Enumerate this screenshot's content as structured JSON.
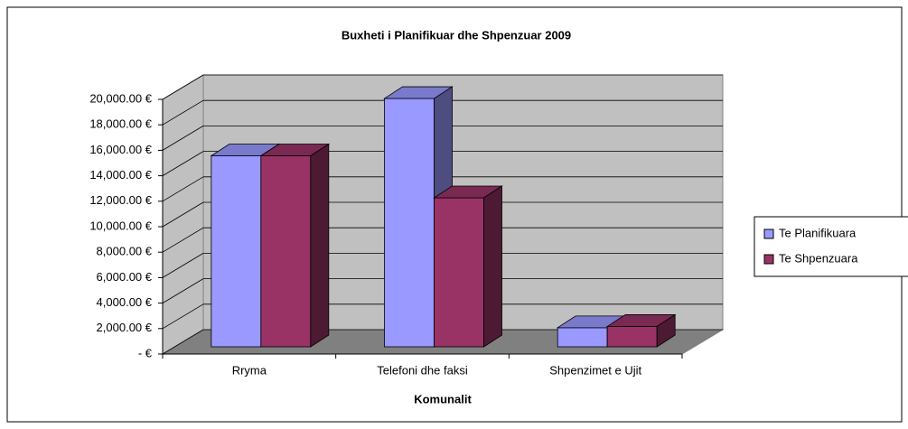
{
  "chart_data": {
    "type": "bar3d",
    "title": "Buxheti i Planifikuar dhe Shpenzuar 2009",
    "x_label": "Komunalit",
    "categories": [
      "Rryma",
      "Telefoni dhe faksi",
      "Shpenzimet e Ujit"
    ],
    "series": [
      {
        "name": "Te Planifikuara",
        "color": "#9999ff",
        "values": [
          15000,
          19500,
          1500
        ]
      },
      {
        "name": "Te Shpenzuara",
        "color": "#993366",
        "values": [
          15000,
          11700,
          1600
        ]
      }
    ],
    "ylim": [
      0,
      20000
    ],
    "yticks": [
      {
        "value": 0,
        "label": "-   €"
      },
      {
        "value": 2000,
        "label": "2,000.00 €"
      },
      {
        "value": 4000,
        "label": "4,000.00 €"
      },
      {
        "value": 6000,
        "label": "6,000.00 €"
      },
      {
        "value": 8000,
        "label": "8,000.00 €"
      },
      {
        "value": 10000,
        "label": "10,000.00 €"
      },
      {
        "value": 12000,
        "label": "12,000.00 €"
      },
      {
        "value": 14000,
        "label": "14,000.00 €"
      },
      {
        "value": 16000,
        "label": "16,000.00 €"
      },
      {
        "value": 18000,
        "label": "18,000.00 €"
      },
      {
        "value": 20000,
        "label": "20,000.00 €"
      }
    ],
    "grid": true,
    "legend": "right"
  }
}
